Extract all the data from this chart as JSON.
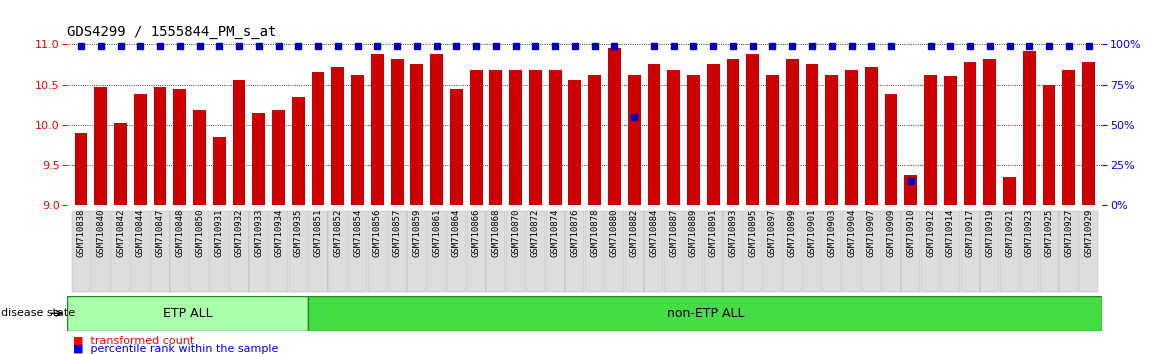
{
  "title": "GDS4299 / 1555844_PM_s_at",
  "samples": [
    "GSM710838",
    "GSM710840",
    "GSM710842",
    "GSM710844",
    "GSM710847",
    "GSM710848",
    "GSM710850",
    "GSM710931",
    "GSM710932",
    "GSM710933",
    "GSM710934",
    "GSM710935",
    "GSM710851",
    "GSM710852",
    "GSM710854",
    "GSM710856",
    "GSM710857",
    "GSM710859",
    "GSM710861",
    "GSM710864",
    "GSM710866",
    "GSM710868",
    "GSM710870",
    "GSM710872",
    "GSM710874",
    "GSM710876",
    "GSM710878",
    "GSM710880",
    "GSM710882",
    "GSM710884",
    "GSM710887",
    "GSM710889",
    "GSM710891",
    "GSM710893",
    "GSM710895",
    "GSM710897",
    "GSM710899",
    "GSM710901",
    "GSM710903",
    "GSM710904",
    "GSM710907",
    "GSM710909",
    "GSM710910",
    "GSM710912",
    "GSM710914",
    "GSM710917",
    "GSM710919",
    "GSM710921",
    "GSM710923",
    "GSM710925",
    "GSM710927",
    "GSM710929"
  ],
  "bar_values": [
    9.9,
    10.47,
    10.02,
    10.38,
    10.47,
    10.45,
    10.18,
    9.85,
    10.55,
    10.15,
    10.18,
    10.35,
    10.65,
    10.72,
    10.62,
    10.88,
    10.82,
    10.75,
    10.88,
    10.45,
    10.68,
    10.68,
    10.68,
    10.68,
    10.68,
    10.55,
    10.62,
    10.95,
    10.62,
    10.75,
    10.68,
    10.62,
    10.75,
    10.82,
    10.88,
    10.62,
    10.82,
    10.75,
    10.62,
    10.68,
    10.72,
    10.38,
    9.38,
    10.62,
    10.6,
    10.78,
    10.82,
    9.35,
    10.92,
    10.5,
    10.68,
    10.78
  ],
  "percentile_values": [
    99,
    99,
    99,
    99,
    99,
    99,
    99,
    99,
    99,
    99,
    99,
    99,
    99,
    99,
    99,
    99,
    99,
    99,
    99,
    99,
    99,
    99,
    99,
    99,
    99,
    99,
    99,
    99,
    55,
    99,
    99,
    99,
    99,
    99,
    99,
    99,
    99,
    99,
    99,
    99,
    99,
    99,
    15,
    99,
    99,
    99,
    99,
    99,
    99,
    99,
    99,
    99
  ],
  "etp_count": 12,
  "bar_color": "#CC0000",
  "percentile_color": "#0000BB",
  "ylim_left": [
    9.0,
    11.0
  ],
  "yticks_left": [
    9.0,
    9.5,
    10.0,
    10.5,
    11.0
  ],
  "ylim_right": [
    0,
    100
  ],
  "yticks_right": [
    0,
    25,
    50,
    75,
    100
  ],
  "etp_color": "#AAFFAA",
  "non_etp_color": "#44DD44",
  "group_border_color": "#228B22",
  "tick_label_bg": "#DDDDDD",
  "title_fontsize": 10,
  "axis_tick_fontsize": 8,
  "sample_fontsize": 6.5,
  "legend_fontsize": 8,
  "disease_state_fontsize": 8,
  "group_label_fontsize": 9
}
